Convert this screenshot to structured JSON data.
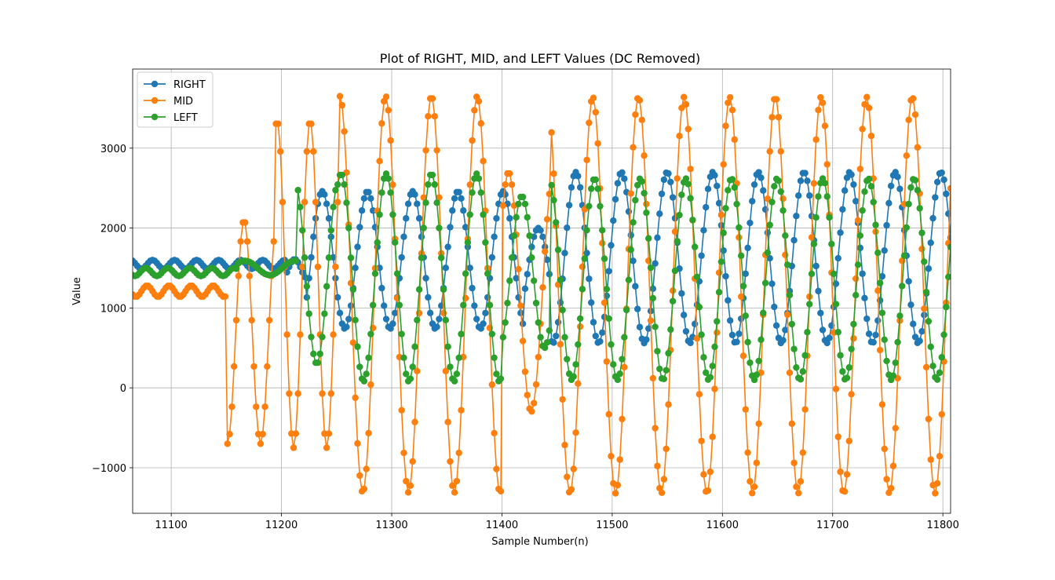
{
  "chart_data": {
    "type": "line",
    "title": "Plot of RIGHT, MID, and LEFT Values (DC Removed)",
    "xlabel": "Sample Number(n)",
    "ylabel": "Value",
    "xlim": [
      11065,
      11807
    ],
    "ylim": [
      -1570,
      3990
    ],
    "xticks": [
      11100,
      11200,
      11300,
      11400,
      11500,
      11600,
      11700,
      11800
    ],
    "yticks": [
      -1000,
      0,
      1000,
      2000,
      3000
    ],
    "xtick_labels": [
      "11100",
      "11200",
      "11300",
      "11400",
      "11500",
      "11600",
      "11700",
      "11800"
    ],
    "ytick_labels": [
      "−1000",
      "0",
      "1000",
      "2000",
      "3000"
    ],
    "grid": true,
    "legend_position": "top-left",
    "marker": "circle",
    "sample_step": 2,
    "series": [
      {
        "name": "RIGHT",
        "color": "#1f77b4",
        "sample_start": 11065,
        "sample_end": 11807,
        "segments": [
          {
            "type": "sine",
            "x_start": 11065,
            "x_end": 11205,
            "center": 1545,
            "amplitude": 55,
            "period": 20,
            "peak_at": 11083
          },
          {
            "type": "sine",
            "x_start": 11205,
            "x_end": 11222,
            "center": 1480,
            "amplitude": 130,
            "period": 24,
            "peak_at": 11212
          },
          {
            "type": "sine",
            "x_start": 11222,
            "x_end": 11420,
            "center": 1600,
            "amplitude": 860,
            "period": 41,
            "peak_at": 11237
          },
          {
            "type": "sine",
            "x_start": 11420,
            "x_end": 11445,
            "center": 1400,
            "amplitude": 600,
            "period": 41,
            "peak_at": 11433
          },
          {
            "type": "sine",
            "x_start": 11445,
            "x_end": 11807,
            "center": 1630,
            "amplitude": 1070,
            "period": 41.4,
            "peak_at": 11467
          }
        ]
      },
      {
        "name": "MID",
        "color": "#ff7f0e",
        "sample_start": 11065,
        "sample_end": 11807,
        "segments": [
          {
            "type": "sine",
            "x_start": 11065,
            "x_end": 11150,
            "center": 1210,
            "amplitude": 70,
            "period": 20,
            "peak_at": 11078
          },
          {
            "type": "sine",
            "x_start": 11150,
            "x_end": 11195,
            "center": 700,
            "amplitude": 1400,
            "period": 30,
            "peak_at": 11166
          },
          {
            "type": "sine",
            "x_start": 11195,
            "x_end": 11252,
            "center": 1300,
            "amplitude": 2050,
            "period": 30,
            "peak_at": 11196
          },
          {
            "type": "sine",
            "x_start": 11252,
            "x_end": 11400,
            "center": 1170,
            "amplitude": 2480,
            "period": 41.5,
            "peak_at": 11253
          },
          {
            "type": "sine",
            "x_start": 11400,
            "x_end": 11445,
            "center": 1200,
            "amplitude": 1500,
            "period": 41,
            "peak_at": 11406
          },
          {
            "type": "sine",
            "x_start": 11445,
            "x_end": 11807,
            "center": 1160,
            "amplitude": 2480,
            "period": 41.4,
            "peak_at": 11441
          }
        ],
        "notable_values": {
          "peak_max": 3650,
          "trough_min": -1330
        }
      },
      {
        "name": "LEFT",
        "color": "#2ca02c",
        "sample_start": 11065,
        "sample_end": 11807,
        "segments": [
          {
            "type": "sine",
            "x_start": 11065,
            "x_end": 11160,
            "center": 1450,
            "amplitude": 50,
            "period": 20,
            "peak_at": 11077
          },
          {
            "type": "sine",
            "x_start": 11160,
            "x_end": 11215,
            "center": 1500,
            "amplitude": 90,
            "period": 45,
            "peak_at": 11212
          },
          {
            "type": "sine",
            "x_start": 11215,
            "x_end": 11250,
            "center": 1450,
            "amplitude": 1150,
            "period": 40,
            "peak_at": 11212
          },
          {
            "type": "sine",
            "x_start": 11250,
            "x_end": 11400,
            "center": 1380,
            "amplitude": 1300,
            "period": 41,
            "peak_at": 11254
          },
          {
            "type": "sine",
            "x_start": 11400,
            "x_end": 11445,
            "center": 1450,
            "amplitude": 950,
            "period": 41,
            "peak_at": 11418
          },
          {
            "type": "sine",
            "x_start": 11445,
            "x_end": 11807,
            "center": 1360,
            "amplitude": 1260,
            "period": 41.4,
            "peak_at": 11484
          }
        ]
      }
    ]
  }
}
